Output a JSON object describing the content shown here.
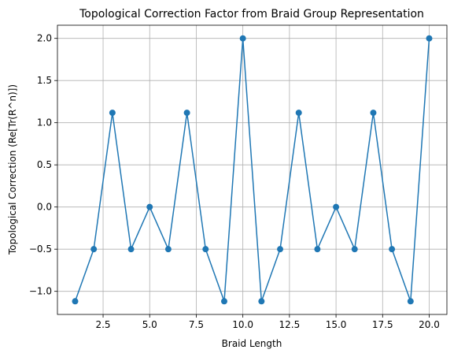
{
  "chart_data": {
    "type": "line",
    "title": "Topological Correction Factor from Braid Group Representation",
    "xlabel": "Braid Length",
    "ylabel": "Topological Correction (Re[Tr(R^n)])",
    "x": [
      1,
      2,
      3,
      4,
      5,
      6,
      7,
      8,
      9,
      10,
      11,
      12,
      13,
      14,
      15,
      16,
      17,
      18,
      19,
      20
    ],
    "series": [
      {
        "values": [
          -1.118,
          -0.5,
          1.118,
          -0.5,
          0.0,
          -0.5,
          1.118,
          -0.5,
          -1.118,
          2.0,
          -1.118,
          -0.5,
          1.118,
          -0.5,
          0.0,
          -0.5,
          1.118,
          -0.5,
          -1.118,
          2.0
        ],
        "color": "#1f77b4",
        "marker": "circle"
      }
    ],
    "xlim": [
      0.05,
      20.95
    ],
    "ylim": [
      -1.274,
      2.156
    ],
    "xticks": [
      "2.5",
      "5.0",
      "7.5",
      "10.0",
      "12.5",
      "15.0",
      "17.5",
      "20.0"
    ],
    "yticks": [
      "−1.0",
      "−0.5",
      "0.0",
      "0.5",
      "1.0",
      "1.5",
      "2.0"
    ],
    "grid": true,
    "legend": "none"
  }
}
